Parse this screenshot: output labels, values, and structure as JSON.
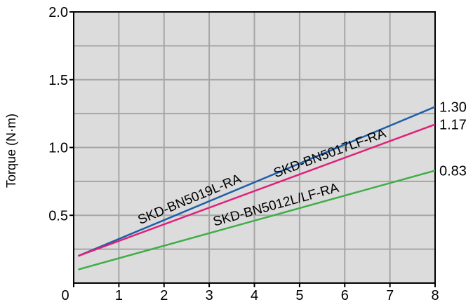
{
  "chart_data": {
    "type": "line",
    "title": "",
    "xlabel": "",
    "ylabel": "Torque (N·m)",
    "xlim": [
      0,
      8
    ],
    "ylim": [
      0,
      2.0
    ],
    "x_ticks": [
      "0",
      "1",
      "2",
      "3",
      "4",
      "5",
      "6",
      "7",
      "8"
    ],
    "y_ticks": [
      "0.5",
      "1.0",
      "1.5",
      "2.0"
    ],
    "grid": true,
    "background": "#dcdcdc",
    "grid_color": "#a6a6a6",
    "series": [
      {
        "name": "SKD-BN5019L-RA",
        "color": "#1f5fa8",
        "x": [
          0.1,
          8
        ],
        "y": [
          0.2,
          1.3
        ],
        "end_label": "1.30",
        "label_at_x": 2.6
      },
      {
        "name": "SKD-BN5017LF-RA",
        "color": "#e0207a",
        "x": [
          0.1,
          8
        ],
        "y": [
          0.2,
          1.17
        ],
        "end_label": "1.17",
        "label_at_x": 5.7
      },
      {
        "name": "SKD-BN5012L/LF-RA",
        "color": "#3fae49",
        "x": [
          0.1,
          8
        ],
        "y": [
          0.1,
          0.83
        ],
        "end_label": "0.83",
        "label_at_x": 4.5
      }
    ]
  }
}
